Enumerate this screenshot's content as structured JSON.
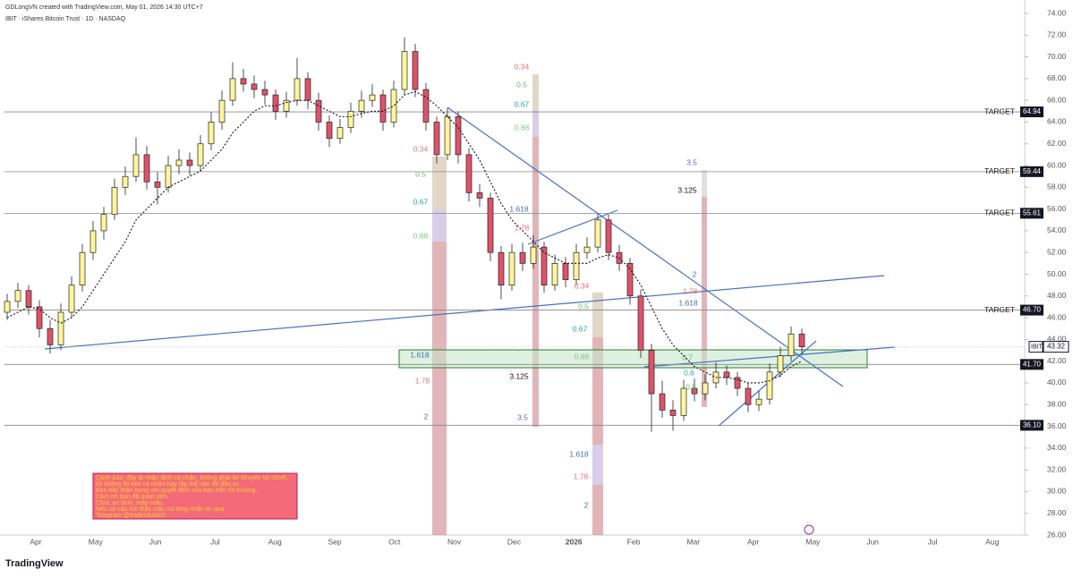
{
  "chart_data": {
    "type": "candlestick",
    "credit": "GDLongVN created with TradingView.com, May 01, 2026 14:30 UTC+7",
    "title": "IBIT · iShares Bitcoin Trust · 1D · NASDAQ",
    "brand": "TradingView",
    "ylim": [
      26,
      74
    ],
    "yticks": [
      {
        "value": 26,
        "label": "26.00"
      },
      {
        "value": 28,
        "label": "28.00"
      },
      {
        "value": 30,
        "label": "30.00"
      },
      {
        "value": 32,
        "label": "32.00"
      },
      {
        "value": 34,
        "label": "34.00"
      },
      {
        "value": 36,
        "label": "36.00"
      },
      {
        "value": 38,
        "label": "38.00"
      },
      {
        "value": 40,
        "label": "40.00"
      },
      {
        "value": 42,
        "label": "42.00"
      },
      {
        "value": 44,
        "label": "44.00"
      },
      {
        "value": 46,
        "label": "46.00"
      },
      {
        "value": 48,
        "label": "48.00"
      },
      {
        "value": 50,
        "label": "50.00"
      },
      {
        "value": 52,
        "label": "52.00"
      },
      {
        "value": 54,
        "label": "54.00"
      },
      {
        "value": 56,
        "label": "56.00"
      },
      {
        "value": 58,
        "label": "58.00"
      },
      {
        "value": 60,
        "label": "60.00"
      },
      {
        "value": 62,
        "label": "62.00"
      },
      {
        "value": 64,
        "label": "64.00"
      },
      {
        "value": 66,
        "label": "66.00"
      },
      {
        "value": 68,
        "label": "68.00"
      },
      {
        "value": 70,
        "label": "70.00"
      },
      {
        "value": 72,
        "label": "72.00"
      },
      {
        "value": 74,
        "label": "74.00"
      }
    ],
    "xlabels": [
      "Apr",
      "May",
      "Jun",
      "Jul",
      "Aug",
      "Sep",
      "Oct",
      "Nov",
      "Dec",
      "2026",
      "Feb",
      "Mar",
      "Apr",
      "May",
      "Jun",
      "Jul",
      "Aug"
    ],
    "up_color": "#fff59d",
    "down_color": "#e0526a",
    "ma_color": "#111111",
    "candles": [
      [
        46.5,
        48.2,
        45.8,
        47.5
      ],
      [
        47.5,
        49.2,
        46.9,
        48.5
      ],
      [
        48.5,
        49,
        46.3,
        47
      ],
      [
        47,
        47.6,
        44.2,
        45
      ],
      [
        45,
        45.8,
        42.7,
        43.5
      ],
      [
        43.5,
        47.3,
        43,
        46.5
      ],
      [
        46.5,
        49.8,
        46,
        49
      ],
      [
        49,
        52.8,
        48.4,
        52
      ],
      [
        52,
        54.9,
        51.3,
        54
      ],
      [
        54,
        56.2,
        53.2,
        55.5
      ],
      [
        55.5,
        58.8,
        55,
        58
      ],
      [
        58,
        59.9,
        57.3,
        59
      ],
      [
        59,
        62.6,
        58.5,
        61
      ],
      [
        61,
        61.8,
        57.8,
        58.5
      ],
      [
        58.5,
        59.4,
        56.4,
        58
      ],
      [
        58,
        60.9,
        57.5,
        60
      ],
      [
        60,
        61.5,
        59.2,
        60.5
      ],
      [
        60.5,
        61.2,
        59.1,
        60
      ],
      [
        60,
        62.8,
        59.5,
        62
      ],
      [
        62,
        64.9,
        61.4,
        64
      ],
      [
        64,
        66.9,
        63.3,
        66
      ],
      [
        66,
        69.5,
        65.5,
        68
      ],
      [
        68,
        68.9,
        66.8,
        67.5
      ],
      [
        67.5,
        68.3,
        66.2,
        67
      ],
      [
        67,
        67.8,
        65.6,
        66.5
      ],
      [
        66.5,
        67,
        64.2,
        65
      ],
      [
        65,
        66.8,
        64.4,
        66
      ],
      [
        66,
        69.9,
        65.5,
        68
      ],
      [
        68,
        68.6,
        65.2,
        66
      ],
      [
        66,
        66.7,
        63.2,
        64
      ],
      [
        64,
        64.6,
        61.7,
        62.5
      ],
      [
        62.5,
        64.3,
        62,
        63.5
      ],
      [
        63.5,
        65.8,
        63,
        65
      ],
      [
        65,
        66.9,
        64.4,
        66
      ],
      [
        66,
        67.5,
        65.4,
        66.5
      ],
      [
        66.5,
        67,
        63.2,
        64
      ],
      [
        64,
        67.8,
        63.5,
        67
      ],
      [
        67,
        71.8,
        66.5,
        70.5
      ],
      [
        70.5,
        71.2,
        66.3,
        67
      ],
      [
        67,
        67.6,
        63.2,
        64
      ],
      [
        64,
        64.5,
        60.2,
        61
      ],
      [
        61,
        65.3,
        60.5,
        64.5
      ],
      [
        64.5,
        65,
        60.2,
        61
      ],
      [
        61,
        61.6,
        56.7,
        57.5
      ],
      [
        57.5,
        58.3,
        56.2,
        57
      ],
      [
        57,
        57.5,
        51.2,
        52
      ],
      [
        52,
        52.6,
        47.7,
        49
      ],
      [
        49,
        52.8,
        48.5,
        52
      ],
      [
        52,
        52.9,
        50.3,
        51
      ],
      [
        51,
        53.6,
        50.5,
        52.5
      ],
      [
        52.5,
        53,
        48.3,
        49
      ],
      [
        49,
        51.8,
        48.5,
        51
      ],
      [
        51,
        51.6,
        48.8,
        49.5
      ],
      [
        49.5,
        52.8,
        49,
        52
      ],
      [
        52,
        53.4,
        51.4,
        52.5
      ],
      [
        52.5,
        55.6,
        52,
        55
      ],
      [
        55,
        55.5,
        51.3,
        52
      ],
      [
        52,
        52.7,
        50.3,
        51
      ],
      [
        51,
        51.5,
        47.2,
        48
      ],
      [
        48,
        48.6,
        42.3,
        43
      ],
      [
        43,
        43.6,
        35.5,
        39
      ],
      [
        39,
        40.2,
        36.8,
        37.5
      ],
      [
        37.5,
        38.4,
        35.6,
        37
      ],
      [
        37,
        40.3,
        36.5,
        39.5
      ],
      [
        39.5,
        40.4,
        38.3,
        39
      ],
      [
        39,
        40.8,
        38.4,
        40
      ],
      [
        40,
        41.9,
        39.5,
        41
      ],
      [
        41,
        41.6,
        39.8,
        40.5
      ],
      [
        40.5,
        41,
        38.8,
        39.5
      ],
      [
        39.5,
        40,
        37.3,
        38
      ],
      [
        38,
        39.3,
        37.4,
        38.5
      ],
      [
        38.5,
        41.8,
        38,
        41
      ],
      [
        41,
        43.3,
        40.5,
        42.5
      ],
      [
        42.5,
        45.2,
        42,
        44.5
      ],
      [
        44.5,
        45,
        42.6,
        43.32
      ]
    ],
    "ma": [
      46,
      46.5,
      47,
      46.8,
      46,
      45.5,
      46,
      47,
      48.5,
      50,
      51.5,
      53,
      55,
      56,
      57,
      58,
      58.5,
      59,
      59.5,
      60.5,
      61.5,
      63,
      64,
      65,
      65.5,
      65.5,
      65.8,
      66,
      66,
      65.5,
      65,
      64.5,
      64.5,
      64.8,
      65,
      65,
      65.5,
      66.5,
      66.8,
      66.3,
      65.5,
      64.5,
      63.5,
      62,
      60.5,
      58.5,
      56.5,
      55,
      54,
      53,
      52,
      51.5,
      51,
      51,
      51,
      51.5,
      51.8,
      51.5,
      50.5,
      49,
      47,
      45,
      43.5,
      42.5,
      41.5,
      41,
      40.5,
      40.5,
      40.3,
      40,
      40,
      40.2,
      40.7,
      41.5,
      42
    ],
    "levels": [
      {
        "value": 64.94,
        "label": "64.94",
        "note": "TARGET"
      },
      {
        "value": 59.44,
        "label": "59.44",
        "note": "TARGET"
      },
      {
        "value": 55.61,
        "label": "55.61",
        "note": "TARGET"
      },
      {
        "value": 46.7,
        "label": "46.70",
        "note": "TARGET"
      },
      {
        "value": 41.7,
        "label": "41.70"
      },
      {
        "value": 36.1,
        "label": "36.10"
      }
    ],
    "price_tag": {
      "name": "IBIT",
      "value": 43.32,
      "label": "43.32"
    },
    "fib_labels": [
      {
        "text": "0.34",
        "color": "#e57373"
      },
      {
        "text": "0.5",
        "color": "#66bb6a"
      },
      {
        "text": "0.67",
        "color": "#26a69a"
      },
      {
        "text": "0.88",
        "color": "#81c784"
      },
      {
        "text": "0.34",
        "color": "#e57373"
      },
      {
        "text": "0.5",
        "color": "#66bb6a"
      },
      {
        "text": "0.67",
        "color": "#26a69a"
      },
      {
        "text": "0.88",
        "color": "#81c784"
      },
      {
        "text": "1.618",
        "color": "#3f6fb5"
      },
      {
        "text": "1.78",
        "color": "#e57373"
      },
      {
        "text": "0.34",
        "color": "#e57373"
      },
      {
        "text": "0.5",
        "color": "#66bb6a"
      },
      {
        "text": "0.67",
        "color": "#26a69a"
      },
      {
        "text": "0.88",
        "color": "#81c784"
      },
      {
        "text": "3.5",
        "color": "#7e57c2"
      },
      {
        "text": "3.125",
        "color": "#111111"
      },
      {
        "text": "2",
        "color": "#3f6fb5"
      },
      {
        "text": "1.78",
        "color": "#e57373"
      },
      {
        "text": "1.618",
        "color": "#3f6fb5"
      },
      {
        "text": "0.7",
        "color": "#66bb6a"
      },
      {
        "text": "0.6",
        "color": "#26a69a"
      },
      {
        "text": "0.5",
        "color": "#66bb6a"
      },
      {
        "text": "1.618",
        "color": "#3f6fb5"
      },
      {
        "text": "1.78",
        "color": "#e57373"
      },
      {
        "text": "2",
        "color": "#7e57c2"
      },
      {
        "text": "3.125",
        "color": "#111111"
      },
      {
        "text": "3.5",
        "color": "#7e57c2"
      },
      {
        "text": "1.618",
        "color": "#3f6fb5"
      },
      {
        "text": "1.78",
        "color": "#e57373"
      },
      {
        "text": "2",
        "color": "#3f6fb5"
      }
    ],
    "disclaimer": [
      "Cảnh báo: đây là nhận định cá nhân, không phải lời khuyên tài chính,",
      "tôi không lôi kéo cá nhân hay tập thể nào đó đầu tư.",
      "Bạn hãy thận trọng với quyết định của bạn trên thị trường.",
      "Cảm ơn bạn đã quan tâm.",
      "Chúc an lành, may mắn.",
      "Nếu có câu hỏi thắc mắc vui lòng nhắn tin qua",
      "Telegram @traderduklich"
    ]
  }
}
